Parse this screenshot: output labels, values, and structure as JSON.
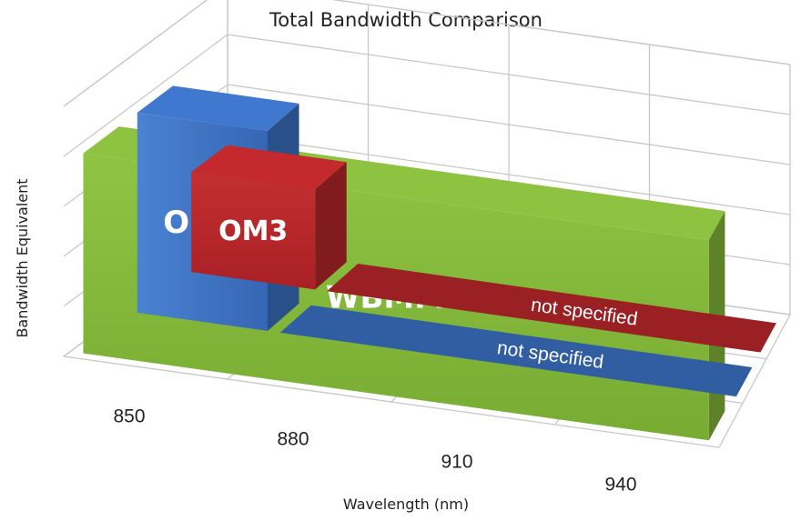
{
  "chart_data": {
    "type": "bar",
    "title": "Total Bandwidth Comparison",
    "xlabel": "Wavelength (nm)",
    "ylabel": "Bandwidth Equivalent",
    "categories": [
      "850",
      "880",
      "910",
      "940"
    ],
    "series": [
      {
        "name": "OM3",
        "values": [
          2,
          null,
          null,
          null
        ],
        "note": "not specified",
        "color": "#b5262a"
      },
      {
        "name": "OM4",
        "values": [
          4,
          null,
          null,
          null
        ],
        "note": "not specified",
        "color": "#3a6fbf"
      },
      {
        "name": "WBMMF",
        "values": [
          4,
          4,
          4,
          4
        ],
        "note": "",
        "color": "#83b53b"
      }
    ],
    "ylim": [
      0,
      5
    ],
    "grid": true,
    "legend": "none"
  }
}
